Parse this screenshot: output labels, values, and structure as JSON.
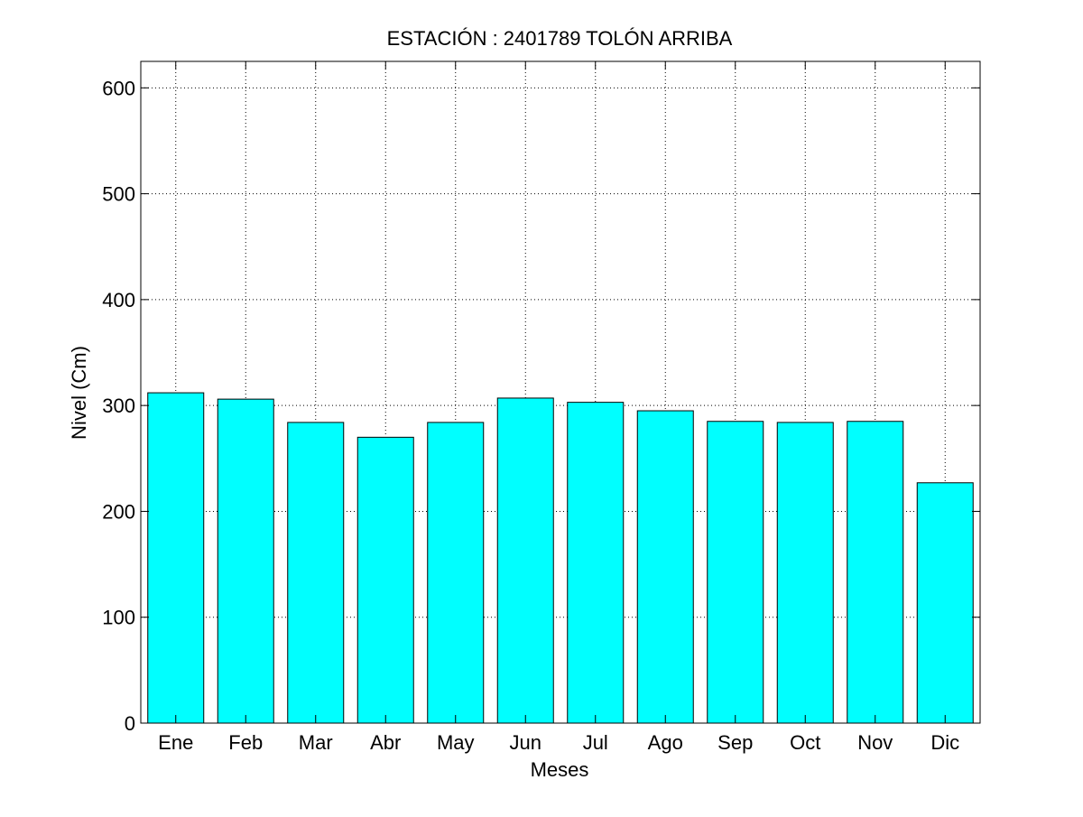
{
  "chart_data": {
    "type": "bar",
    "title": "ESTACIÓN :  2401789  TOLÓN ARRIBA",
    "xlabel": "Meses",
    "ylabel": "Nivel (Cm)",
    "categories": [
      "Ene",
      "Feb",
      "Mar",
      "Abr",
      "May",
      "Jun",
      "Jul",
      "Ago",
      "Sep",
      "Oct",
      "Nov",
      "Dic"
    ],
    "values": [
      312,
      306,
      284,
      270,
      284,
      307,
      303,
      295,
      285,
      284,
      285,
      227
    ],
    "ylim": [
      0,
      625
    ],
    "xlim": [
      0.5,
      12.5
    ],
    "yticks": [
      0,
      100,
      200,
      300,
      400,
      500,
      600
    ],
    "bar_color": "#00ffff",
    "bar_edge_color": "#000000",
    "grid": true,
    "grid_style": "dotted"
  }
}
